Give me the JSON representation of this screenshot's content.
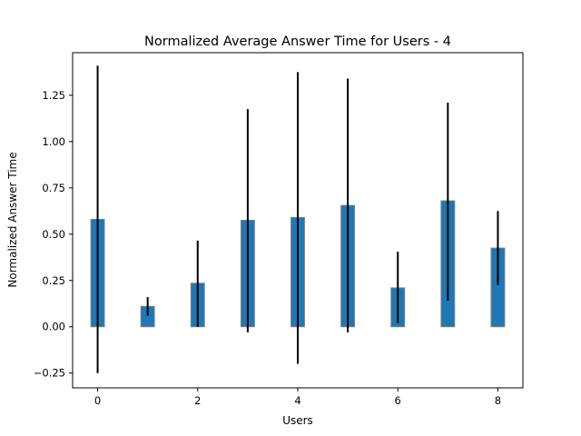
{
  "chart_data": {
    "type": "bar",
    "title": "Normalized Average Answer Time for Users - 4",
    "xlabel": "Users",
    "ylabel": "Normalized Answer Time",
    "categories": [
      0,
      1,
      2,
      3,
      4,
      5,
      6,
      7,
      8
    ],
    "values": [
      0.58,
      0.11,
      0.235,
      0.575,
      0.59,
      0.655,
      0.21,
      0.68,
      0.425
    ],
    "error_low": [
      -0.25,
      0.06,
      0.0,
      -0.03,
      -0.2,
      -0.03,
      0.02,
      0.14,
      0.225
    ],
    "error_high": [
      1.41,
      0.16,
      0.465,
      1.175,
      1.375,
      1.34,
      0.405,
      1.21,
      0.625
    ],
    "xlim": [
      -0.5,
      8.5
    ],
    "ylim": [
      -0.33,
      1.48
    ],
    "xticks": [
      0,
      2,
      4,
      6,
      8
    ],
    "yticks": [
      -0.25,
      0.0,
      0.25,
      0.5,
      0.75,
      1.0,
      1.25
    ],
    "ytick_labels": [
      "−0.25",
      "0.00",
      "0.25",
      "0.50",
      "0.75",
      "1.00",
      "1.25"
    ],
    "bar_color": "#1f77b4",
    "bar_edge_color": "#7f7f7f",
    "errorbar_color": "#000000",
    "grid": false,
    "legend": "none"
  }
}
